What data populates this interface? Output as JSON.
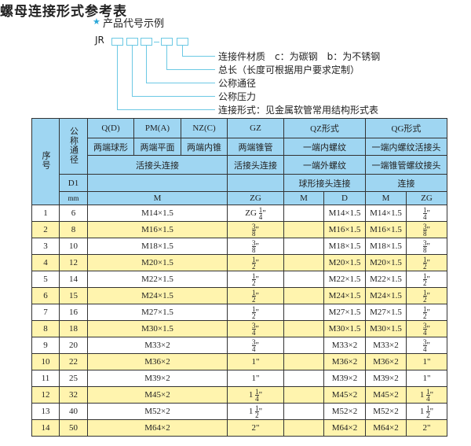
{
  "example": {
    "heading": "产品代号示例",
    "icon": "star-icon",
    "code_prefix": "JR",
    "labels": [
      "连接件材质　c：为碳钢　b：为不锈钢",
      "总长（长度可根据用户要求定制）",
      "公称通径",
      "公称压力",
      "连接形式：见金属软管常用结构形式表"
    ]
  },
  "table_title": "螺母连接形式参考表",
  "colors": {
    "header": "#9fd6f2",
    "alt_row": "#fff4ae",
    "line": "#6cc9e4"
  },
  "header": {
    "seq": "序号",
    "nominal": "公称通径",
    "d1": "D1",
    "mm": "mm",
    "row1": [
      "Q(D)",
      "PM(A)",
      "NZ(C)",
      "GZ",
      "QZ形式",
      "QG形式"
    ],
    "row2": [
      "两端球形",
      "两端平面",
      "两端内锥",
      "两端锥管",
      "一端内螺纹",
      "一端内螺纹活接头"
    ],
    "row3": [
      "活接头连接",
      "活接头连接",
      "一端外螺纹",
      "一端锥管螺纹接头"
    ],
    "row4": [
      "球形接头连接",
      "连接"
    ],
    "row5": [
      "M",
      "ZG",
      "M",
      "D",
      "M",
      "ZG"
    ]
  },
  "rows": [
    [
      "1",
      "6",
      "M14×1.5",
      "ZG 1/4\"",
      "",
      "M14×1.5",
      "M14×1.5",
      "1/4\""
    ],
    [
      "2",
      "8",
      "M16×1.5",
      "3/8\"",
      "",
      "M16×1.5",
      "M16×1.5",
      "3/8\""
    ],
    [
      "3",
      "10",
      "M18×1.5",
      "3/8\"",
      "",
      "M18×1.5",
      "M18×1.5",
      "3/8\""
    ],
    [
      "4",
      "12",
      "M20×1.5",
      "1/2\"",
      "",
      "M20×1.5",
      "M20×1.5",
      "1/2\""
    ],
    [
      "5",
      "14",
      "M22×1.5",
      "1/2\"",
      "",
      "M22×1.5",
      "M22×1.5",
      "1/2\""
    ],
    [
      "6",
      "15",
      "M24×1.5",
      "1/2\"",
      "",
      "M24×1.5",
      "M24×1.5",
      "1/2\""
    ],
    [
      "7",
      "16",
      "M27×1.5",
      "1/2\"",
      "",
      "M27×1.5",
      "M27×1.5",
      "1/2\""
    ],
    [
      "8",
      "18",
      "M30×1.5",
      "3/4\"",
      "",
      "M30×1.5",
      "M30×1.5",
      "3/4\""
    ],
    [
      "9",
      "20",
      "M33×2",
      "3/4\"",
      "",
      "M33×2",
      "M33×2",
      "3/4\""
    ],
    [
      "10",
      "22",
      "M36×2",
      "1\"",
      "",
      "M36×2",
      "M36×2",
      "1\""
    ],
    [
      "11",
      "25",
      "M39×2",
      "1\"",
      "",
      "M39×2",
      "M39×2",
      "1\""
    ],
    [
      "12",
      "32",
      "M45×2",
      "1 1/4\"",
      "",
      "M45×2",
      "M45×2",
      "1 1/4\""
    ],
    [
      "13",
      "40",
      "M52×2",
      "1 1/2\"",
      "",
      "M52×2",
      "M52×2",
      "1 1/2\""
    ],
    [
      "14",
      "50",
      "M64×2",
      "2\"",
      "",
      "M64×2",
      "M64×2",
      "2\""
    ]
  ]
}
